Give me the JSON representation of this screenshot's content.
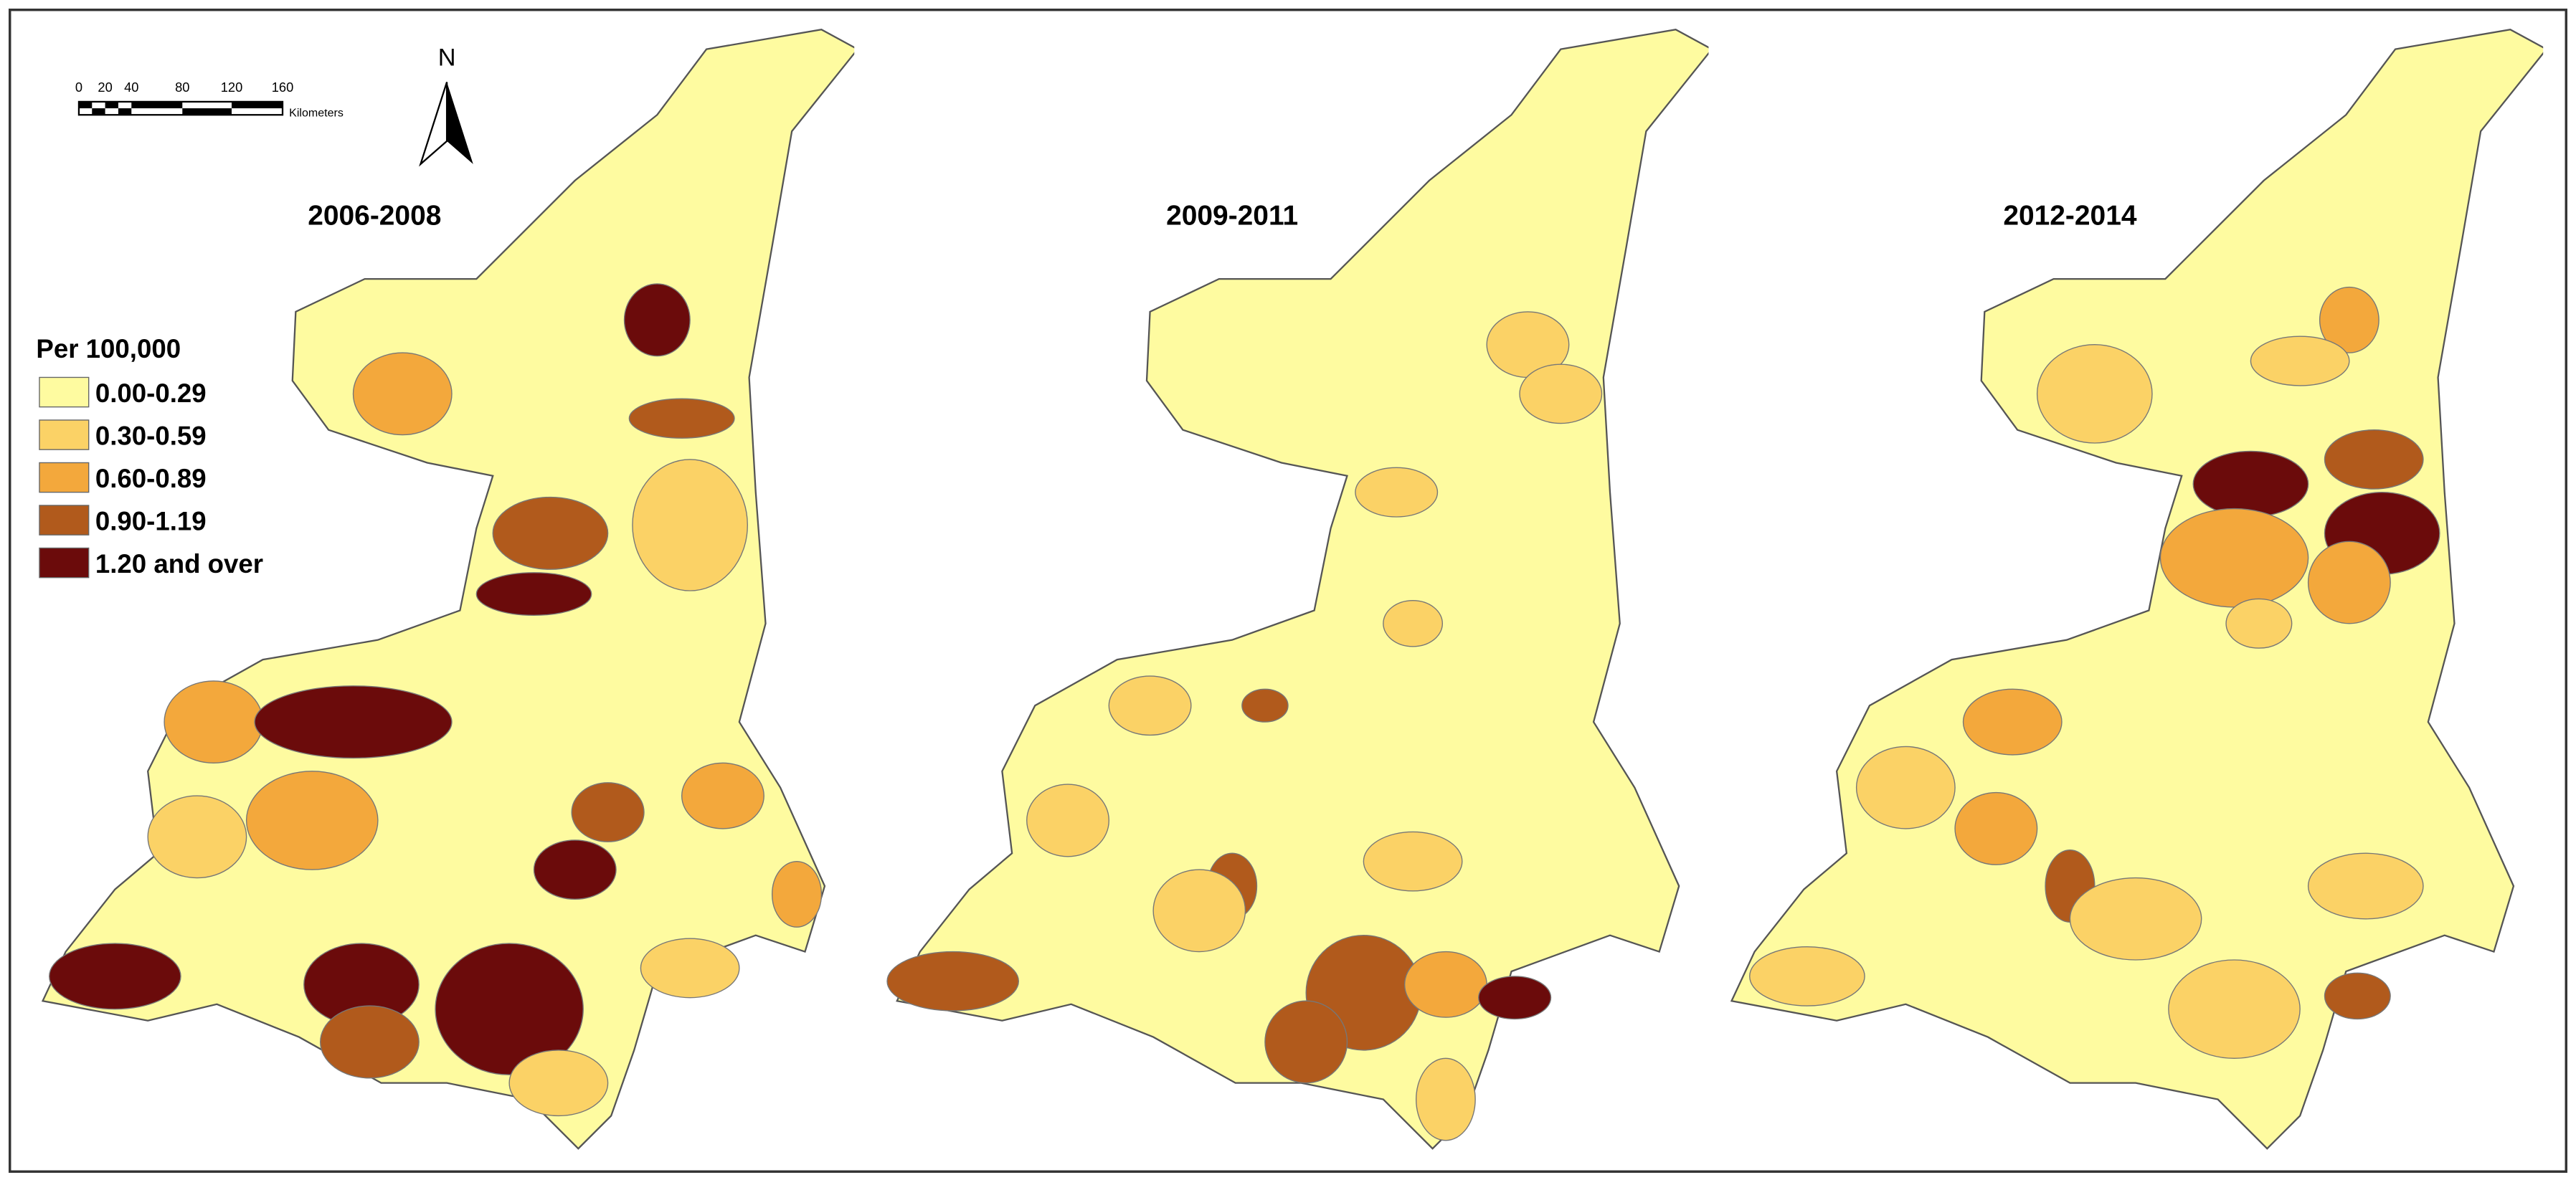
{
  "maps": [
    {
      "title": "2006-2008"
    },
    {
      "title": "2009-2011"
    },
    {
      "title": "2012-2014"
    }
  ],
  "legend": {
    "title": "Per 100,000",
    "classes": [
      {
        "label": "0.00-0.29",
        "color": "#fefba0"
      },
      {
        "label": "0.30-0.59",
        "color": "#fbd266"
      },
      {
        "label": "0.60-0.89",
        "color": "#f3a83c"
      },
      {
        "label": "0.90-1.19",
        "color": "#b15a1c"
      },
      {
        "label": "1.20 and over",
        "color": "#6b0b0b"
      }
    ]
  },
  "scale_bar": {
    "labels": [
      "0",
      "20",
      "40",
      "80",
      "120",
      "160"
    ],
    "unit": "Kilometers"
  },
  "north": "N"
}
